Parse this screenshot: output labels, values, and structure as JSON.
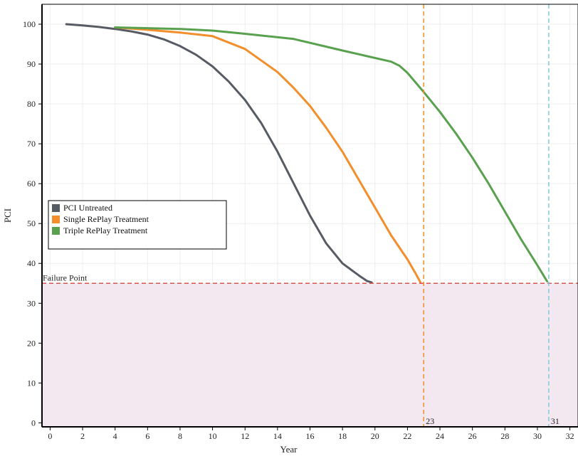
{
  "chart_data": {
    "type": "line",
    "title": "",
    "xlabel": "Year",
    "ylabel": "PCI",
    "xlim": [
      -0.5,
      32.5
    ],
    "ylim": [
      -1,
      105
    ],
    "x_ticks": [
      0,
      2,
      4,
      6,
      8,
      10,
      12,
      14,
      16,
      18,
      20,
      22,
      24,
      26,
      28,
      30,
      32
    ],
    "y_ticks": [
      0,
      10,
      20,
      30,
      40,
      50,
      60,
      70,
      80,
      90,
      100
    ],
    "grid": true,
    "legend_position": "left, mid-height",
    "series": [
      {
        "name": "PCI Untreated",
        "color": "#575b63",
        "x": [
          1,
          2,
          3,
          4,
          5,
          6,
          7,
          8,
          9,
          10,
          11,
          12,
          13,
          14,
          15,
          16,
          17,
          18,
          19,
          19.5,
          19.8
        ],
        "y": [
          100,
          99.7,
          99.3,
          98.8,
          98.2,
          97.4,
          96.2,
          94.5,
          92.3,
          89.4,
          85.6,
          81.0,
          75.2,
          68.0,
          60.0,
          52.0,
          45.0,
          40.0,
          37.0,
          35.6,
          35.2
        ]
      },
      {
        "name": "Single RePlay Treatment",
        "color": "#f28e2b",
        "x": [
          4,
          6,
          8,
          10,
          12,
          14,
          15,
          16,
          17,
          18,
          19,
          20,
          21,
          22,
          22.5,
          22.8
        ],
        "y": [
          99.2,
          98.6,
          97.9,
          97.0,
          93.8,
          88.0,
          84.0,
          79.5,
          74.0,
          68.0,
          61.0,
          54.0,
          47.0,
          41.0,
          37.5,
          35.2
        ]
      },
      {
        "name": "Triple RePlay Treatment",
        "color": "#59a14f",
        "x": [
          4,
          6,
          8,
          10,
          12,
          15,
          18,
          21,
          21.5,
          22,
          23,
          24,
          25,
          26,
          27,
          28,
          29,
          30,
          30.6
        ],
        "y": [
          99.2,
          99.0,
          98.8,
          98.4,
          97.6,
          96.3,
          93.4,
          90.6,
          89.6,
          87.8,
          83.0,
          78.0,
          72.5,
          66.5,
          60.0,
          53.0,
          46.0,
          39.5,
          35.5
        ]
      }
    ],
    "annotations": {
      "failure_threshold": {
        "y": 35,
        "label": "Failure Point",
        "color": "#d9534f",
        "shade_color": "#f3e8f0"
      },
      "vlines": [
        {
          "x": 23,
          "label": "23",
          "color": "#f28e2b"
        },
        {
          "x": 30.7,
          "label": "31",
          "color": "#7ec8e3"
        }
      ]
    }
  }
}
